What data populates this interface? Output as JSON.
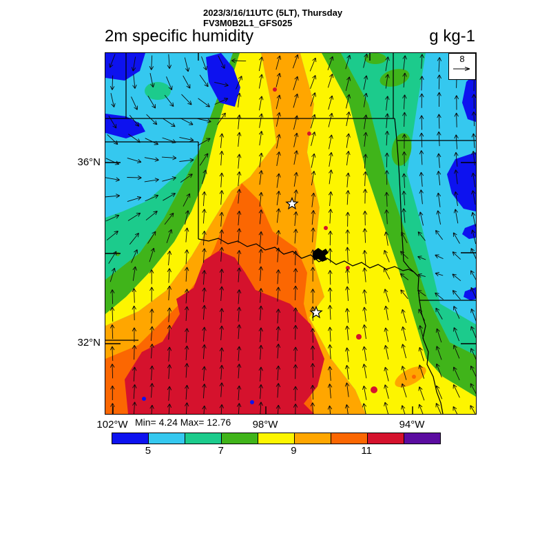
{
  "header": {
    "datetime_line": "2023/3/16/11UTC (5LT), Thursday",
    "model_line": "FV3M0B2L1_GFS025",
    "variable_title": "2m specific humidity",
    "units_label": "g kg-1"
  },
  "map": {
    "lat_labels": [
      "36°N",
      "32°N"
    ],
    "lon_labels": [
      "102°W",
      "98°W",
      "94°W"
    ],
    "stats": "Min= 4.24 Max= 12.76",
    "ref_arrow_value": "8",
    "city_star_markers": 2,
    "field_colors": {
      "blue": "#0d12ef",
      "cyan": "#35c8ef",
      "emerald": "#1ccb8c",
      "green": "#40b41a",
      "yellow": "#fdf500",
      "orange": "#ffa600",
      "darkorange": "#fb6702",
      "red": "#d5122d",
      "purple": "#5b0ca0"
    }
  },
  "colorbar": {
    "tick_labels": [
      "5",
      "7",
      "9",
      "11"
    ],
    "colors": [
      "#0d12ef",
      "#35c8ef",
      "#1ccb8c",
      "#40b41a",
      "#fdf500",
      "#ffa600",
      "#fb6702",
      "#d5122d",
      "#5b0ca0"
    ]
  },
  "chart_data": {
    "type": "heatmap",
    "title": "2m specific humidity",
    "units": "g kg-1",
    "valid_time": "2023/3/16/11UTC (5LT), Thursday",
    "model_run": "FV3M0B2L1_GFS025",
    "stat_min": 4.24,
    "stat_max": 12.76,
    "level_edges": [
      5,
      6,
      7,
      8,
      9,
      10,
      11,
      12
    ],
    "level_colors": [
      "#0d12ef",
      "#35c8ef",
      "#1ccb8c",
      "#40b41a",
      "#fdf500",
      "#ffa600",
      "#fb6702",
      "#d5122d",
      "#5b0ca0"
    ],
    "colorbar_tick_labels": [
      "5",
      "7",
      "9",
      "11"
    ],
    "axes": {
      "lat_tick_labels": [
        "36°N",
        "32°N"
      ],
      "lon_tick_labels": [
        "102°W",
        "98°W",
        "94°W"
      ]
    },
    "wind": {
      "reference_value": "8",
      "description": "Southerly winds east of the dry line veering to up-valley southeasterly near the eastern edge; northerly turning easterly-to-southwesterly flow in the dry northwest sector"
    },
    "field_description": "Moisture increases from NW (4-6 g/kg blue/cyan over the high plains) through diagonal green/yellow gradient bands to 10-12+ g/kg (dark orange/red) over central Texas; driest axis northwest, moistest south"
  }
}
